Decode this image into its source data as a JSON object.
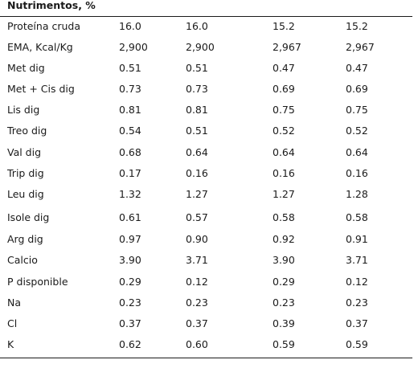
{
  "table": {
    "header": "Nutrimentos, %",
    "rows": [
      [
        "Proteína cruda",
        "16.0",
        "16.0",
        "15.2",
        "15.2"
      ],
      [
        "EMA, Kcal/Kg",
        "2,900",
        "2,900",
        "2,967",
        "2,967"
      ],
      [
        "Met dig",
        "0.51",
        "0.51",
        "0.47",
        "0.47"
      ],
      [
        "Met + Cis dig",
        "0.73",
        "0.73",
        "0.69",
        "0.69"
      ],
      [
        "Lis dig",
        "0.81",
        "0.81",
        "0.75",
        "0.75"
      ],
      [
        "Treo dig",
        "0.54",
        "0.51",
        "0.52",
        "0.52"
      ],
      [
        "Val dig",
        "0.68",
        "0.64",
        "0.64",
        "0.64"
      ],
      [
        "Trip dig",
        "0.17",
        "0.16",
        "0.16",
        "0.16"
      ],
      [
        "Leu dig",
        "1.32",
        "1.27",
        "1.27",
        "1.28"
      ],
      [
        "Isole dig",
        "0.61",
        "0.57",
        "0.58",
        "0.58"
      ],
      [
        "Arg dig",
        "0.97",
        "0.90",
        "0.92",
        "0.91"
      ],
      [
        "Calcio",
        "3.90",
        "3.71",
        "3.90",
        "3.71"
      ],
      [
        "P disponible",
        "0.29",
        "0.12",
        "0.29",
        "0.12"
      ],
      [
        "Na",
        "0.23",
        "0.23",
        "0.23",
        "0.23"
      ],
      [
        "Cl",
        "0.37",
        "0.37",
        "0.39",
        "0.37"
      ],
      [
        "K",
        "0.62",
        "0.60",
        "0.59",
        "0.59"
      ]
    ]
  }
}
